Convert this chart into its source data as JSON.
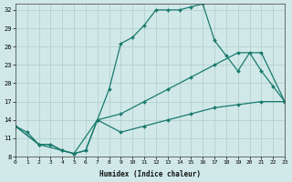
{
  "xlabel": "Humidex (Indice chaleur)",
  "bg_color": "#d0e8e8",
  "line_color": "#1a7a6e",
  "grid_color": "#b0cccc",
  "xlim": [
    0,
    23
  ],
  "ylim": [
    8,
    33
  ],
  "yticks": [
    8,
    11,
    14,
    17,
    20,
    23,
    26,
    29,
    32
  ],
  "xticks": [
    0,
    1,
    2,
    3,
    4,
    5,
    6,
    7,
    8,
    9,
    10,
    11,
    12,
    13,
    14,
    15,
    16,
    17,
    18,
    19,
    20,
    21,
    22,
    23
  ],
  "line1_x": [
    0,
    1,
    2,
    3,
    4,
    5,
    6,
    7,
    8,
    9,
    10,
    11,
    12,
    13,
    14,
    15,
    16,
    17,
    18,
    19,
    20,
    21,
    22,
    23
  ],
  "line1_y": [
    13,
    12,
    10,
    10,
    9,
    8.5,
    9,
    14,
    19,
    26.5,
    27.5,
    29.5,
    32,
    32,
    32,
    32.5,
    33,
    27,
    24.5,
    22,
    25,
    22,
    19.5,
    17
  ],
  "line2_x": [
    0,
    2,
    3,
    4,
    5,
    6,
    7,
    9,
    11,
    13,
    15,
    17,
    19,
    21,
    23
  ],
  "line2_y": [
    13,
    10,
    10,
    9,
    8.5,
    9,
    14,
    15,
    17,
    19,
    21,
    23,
    25,
    25,
    17
  ],
  "line3_x": [
    0,
    2,
    5,
    7,
    9,
    11,
    13,
    15,
    17,
    19,
    21,
    23
  ],
  "line3_y": [
    13,
    10,
    8.5,
    14,
    12,
    13,
    14,
    15,
    16,
    16.5,
    17,
    17
  ]
}
